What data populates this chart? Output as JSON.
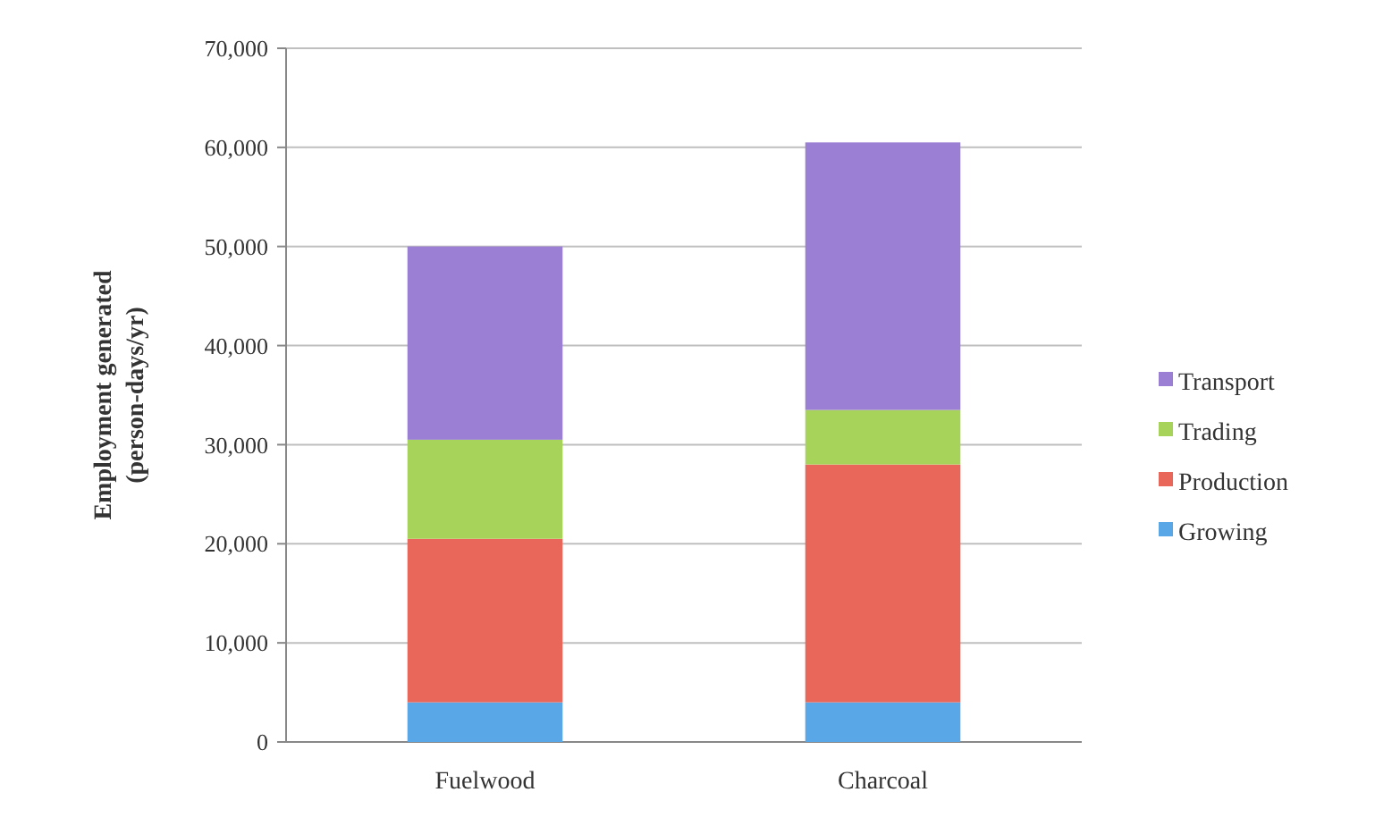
{
  "chart_data": {
    "type": "bar",
    "stacked": true,
    "ylabel": "Employment generated\n(person-days/yr)",
    "categories": [
      "Fuelwood",
      "Charcoal"
    ],
    "series": [
      {
        "name": "Growing",
        "color": "#5aa7e8",
        "values": [
          4000,
          4000
        ]
      },
      {
        "name": "Production",
        "color": "#e8675a",
        "values": [
          16500,
          24000
        ]
      },
      {
        "name": "Trading",
        "color": "#a8d35a",
        "values": [
          10000,
          5500
        ]
      },
      {
        "name": "Transport",
        "color": "#9b7fd4",
        "values": [
          19500,
          27000
        ]
      }
    ],
    "ylim": [
      0,
      70000
    ],
    "yticks": [
      {
        "value": 0,
        "label": "0"
      },
      {
        "value": 10000,
        "label": "10,000"
      },
      {
        "value": 20000,
        "label": "20,000"
      },
      {
        "value": 30000,
        "label": "30,000"
      },
      {
        "value": 40000,
        "label": "40,000"
      },
      {
        "value": 50000,
        "label": "50,000"
      },
      {
        "value": 60000,
        "label": "60,000"
      },
      {
        "value": 70000,
        "label": "70,000"
      }
    ],
    "grid": "y",
    "legend": "right"
  }
}
